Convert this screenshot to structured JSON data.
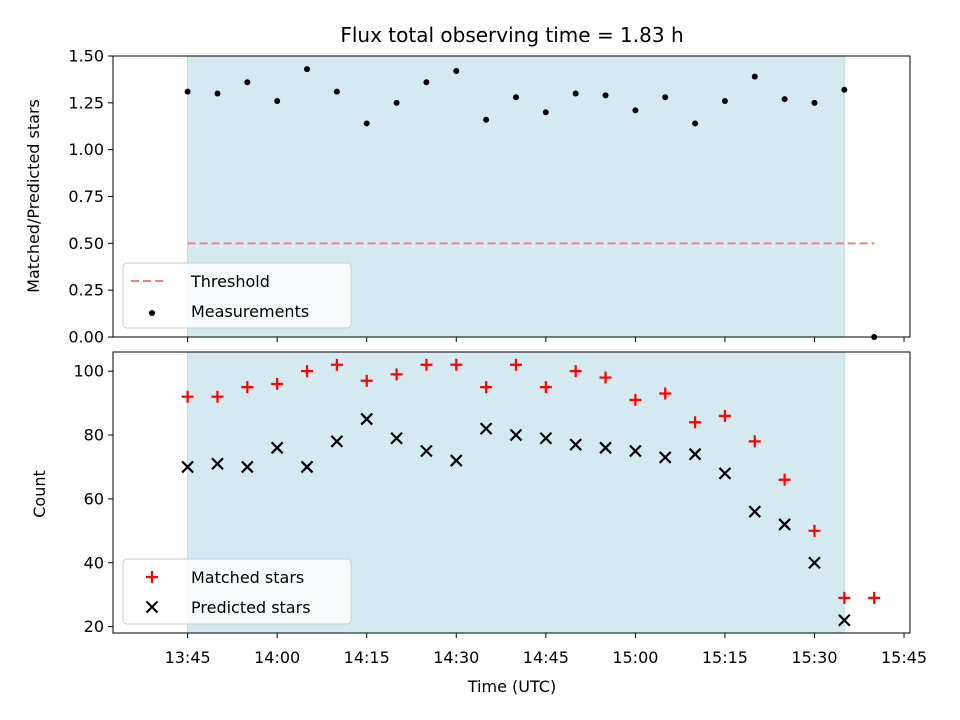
{
  "chart_data": {
    "type": "scatter",
    "title": "Flux total observing time = 1.83 h",
    "xlabel": "Time (UTC)",
    "x_ticks": [
      "13:45",
      "14:00",
      "14:15",
      "14:30",
      "14:45",
      "15:00",
      "15:15",
      "15:30",
      "15:45"
    ],
    "x_tick_minutes": [
      0,
      15,
      30,
      45,
      60,
      75,
      90,
      105,
      120
    ],
    "xlim_minutes": [
      -12.5,
      121
    ],
    "shaded_range_minutes": [
      0,
      110
    ],
    "shade_color": "#d4eaf0",
    "panels": [
      {
        "ylabel": "Matched/Predicted stars",
        "ylim": [
          0,
          1.5
        ],
        "yticks": [
          "0.00",
          "0.25",
          "0.50",
          "0.75",
          "1.00",
          "1.25",
          "1.50"
        ],
        "ytick_values": [
          0,
          0.25,
          0.5,
          0.75,
          1.0,
          1.25,
          1.5
        ],
        "threshold": {
          "name": "Threshold",
          "value": 0.5,
          "x_range_minutes": [
            0,
            115
          ],
          "color": "#f08080"
        },
        "series": [
          {
            "name": "Measurements",
            "marker": "dot",
            "color": "#000000",
            "x_minutes": [
              0,
              5,
              10,
              15,
              20,
              25,
              30,
              35,
              40,
              45,
              50,
              55,
              60,
              65,
              70,
              75,
              80,
              85,
              90,
              95,
              100,
              105,
              110,
              115
            ],
            "y": [
              1.31,
              1.3,
              1.36,
              1.26,
              1.43,
              1.31,
              1.14,
              1.25,
              1.36,
              1.42,
              1.16,
              1.28,
              1.2,
              1.3,
              1.29,
              1.21,
              1.28,
              1.14,
              1.26,
              1.39,
              1.27,
              1.25,
              1.32,
              0.0
            ]
          }
        ],
        "legend": [
          "Threshold",
          "Measurements"
        ]
      },
      {
        "ylabel": "Count",
        "ylim": [
          18,
          106
        ],
        "yticks": [
          "20",
          "40",
          "60",
          "80",
          "100"
        ],
        "ytick_values": [
          20,
          40,
          60,
          80,
          100
        ],
        "series": [
          {
            "name": "Matched stars",
            "marker": "plus",
            "color": "#ff0000",
            "x_minutes": [
              0,
              5,
              10,
              15,
              20,
              25,
              30,
              35,
              40,
              45,
              50,
              55,
              60,
              65,
              70,
              75,
              80,
              85,
              90,
              95,
              100,
              105,
              110,
              115
            ],
            "y": [
              92,
              92,
              95,
              96,
              100,
              102,
              97,
              99,
              102,
              102,
              95,
              102,
              95,
              100,
              98,
              91,
              93,
              84,
              86,
              78,
              66,
              50,
              29,
              29
            ]
          },
          {
            "name": "Predicted stars",
            "marker": "x",
            "color": "#000000",
            "x_minutes": [
              0,
              5,
              10,
              15,
              20,
              25,
              30,
              35,
              40,
              45,
              50,
              55,
              60,
              65,
              70,
              75,
              80,
              85,
              90,
              95,
              100,
              105,
              110
            ],
            "y": [
              70,
              71,
              70,
              76,
              70,
              78,
              85,
              79,
              75,
              72,
              82,
              80,
              79,
              77,
              76,
              75,
              73,
              74,
              68,
              56,
              52,
              40,
              22
            ]
          }
        ],
        "legend": [
          "Matched stars",
          "Predicted stars"
        ]
      }
    ]
  }
}
